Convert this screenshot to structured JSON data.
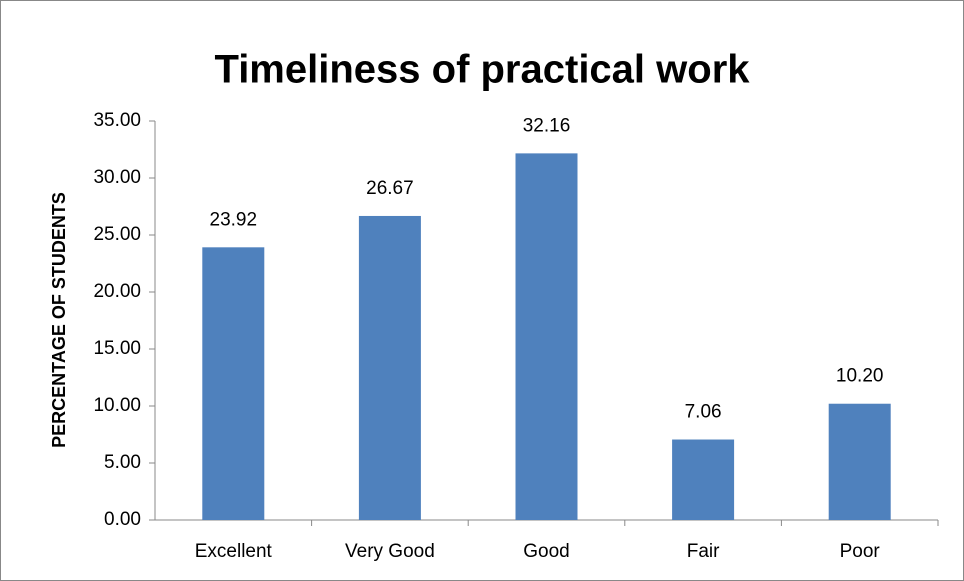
{
  "chart_data": {
    "type": "bar",
    "title": "Timeliness of practical work",
    "ylabel": "PERCENTAGE OF STUDENTS",
    "categories": [
      "Excellent",
      "Very Good",
      "Good",
      "Fair",
      "Poor"
    ],
    "values": [
      23.92,
      26.67,
      32.16,
      7.06,
      10.2
    ],
    "value_labels": [
      "23.92",
      "26.67",
      "32.16",
      "7.06",
      "10.20"
    ],
    "color": "#4f81bd",
    "ylim": [
      0,
      35
    ],
    "yticks": [
      {
        "value": 0,
        "label": "0.00"
      },
      {
        "value": 5,
        "label": "5.00"
      },
      {
        "value": 10,
        "label": "10.00"
      },
      {
        "value": 15,
        "label": "15.00"
      },
      {
        "value": 20,
        "label": "20.00"
      },
      {
        "value": 25,
        "label": "25.00"
      },
      {
        "value": 30,
        "label": "30.00"
      },
      {
        "value": 35,
        "label": "35.00"
      }
    ],
    "grid": false
  }
}
